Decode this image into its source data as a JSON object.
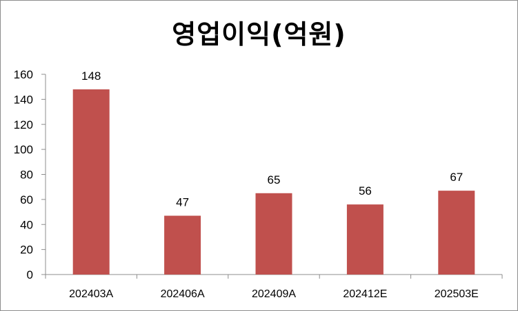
{
  "chart_data": {
    "type": "bar",
    "title": "영업이익(억원)",
    "categories": [
      "202403A",
      "202406A",
      "202409A",
      "202412E",
      "202503E"
    ],
    "values": [
      148,
      47,
      65,
      56,
      67
    ],
    "data_labels": [
      "148",
      "47",
      "65",
      "56",
      "67"
    ],
    "xlabel": "",
    "ylabel": "",
    "ylim": [
      0,
      160
    ],
    "yticks": [
      0,
      20,
      40,
      60,
      80,
      100,
      120,
      140,
      160
    ],
    "grid": false,
    "legend": "none",
    "bar_color": "#c0504d"
  }
}
